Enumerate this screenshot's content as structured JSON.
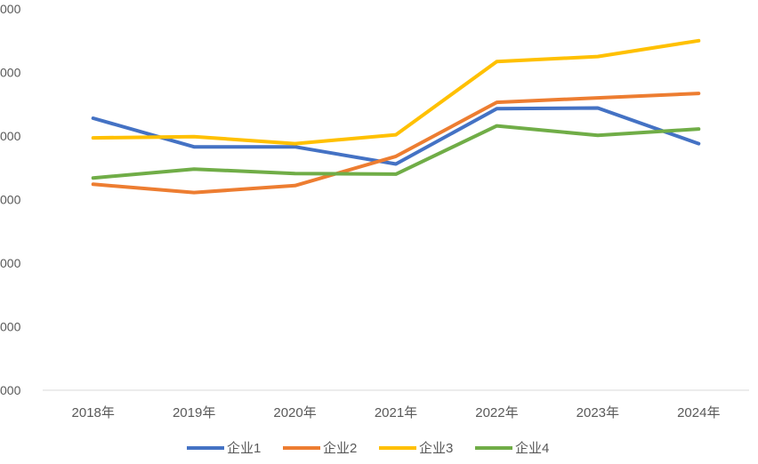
{
  "chart_data": {
    "type": "line",
    "title": "",
    "xlabel": "",
    "ylabel": "",
    "categories": [
      "2018年",
      "2019年",
      "2020年",
      "2021年",
      "2022年",
      "2023年",
      "2024年"
    ],
    "y_tick_labels": [
      "000",
      "000",
      "000",
      "000",
      "000",
      "000",
      "000"
    ],
    "ylim": [
      0,
      6
    ],
    "grid": false,
    "legend_position": "bottom",
    "series": [
      {
        "name": "企业1",
        "color": "#4472C4",
        "values": [
          4.28,
          3.83,
          3.83,
          3.56,
          4.43,
          4.44,
          3.88
        ]
      },
      {
        "name": "企业2",
        "color": "#ED7D31",
        "values": [
          3.24,
          3.11,
          3.22,
          3.68,
          4.53,
          4.6,
          4.67
        ]
      },
      {
        "name": "企业3",
        "color": "#FFC000",
        "values": [
          3.97,
          3.99,
          3.88,
          4.02,
          5.17,
          5.25,
          5.5
        ]
      },
      {
        "name": "企业4",
        "color": "#70AD47",
        "values": [
          3.34,
          3.48,
          3.41,
          3.4,
          4.16,
          4.01,
          4.11
        ]
      }
    ]
  }
}
